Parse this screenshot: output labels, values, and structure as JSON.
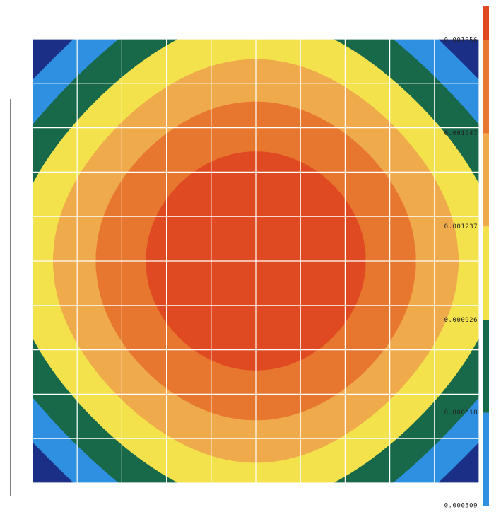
{
  "chart_data": {
    "type": "contour",
    "levels": [
      0.000309,
      0.000618,
      0.000926,
      0.001237,
      0.001547,
      0.001856
    ],
    "colors": [
      "#1b2f86",
      "#2f8fe0",
      "#17694a",
      "#f3e24c",
      "#eeaa4b",
      "#e7772f",
      "#df4a22"
    ],
    "grid": true
  }
}
